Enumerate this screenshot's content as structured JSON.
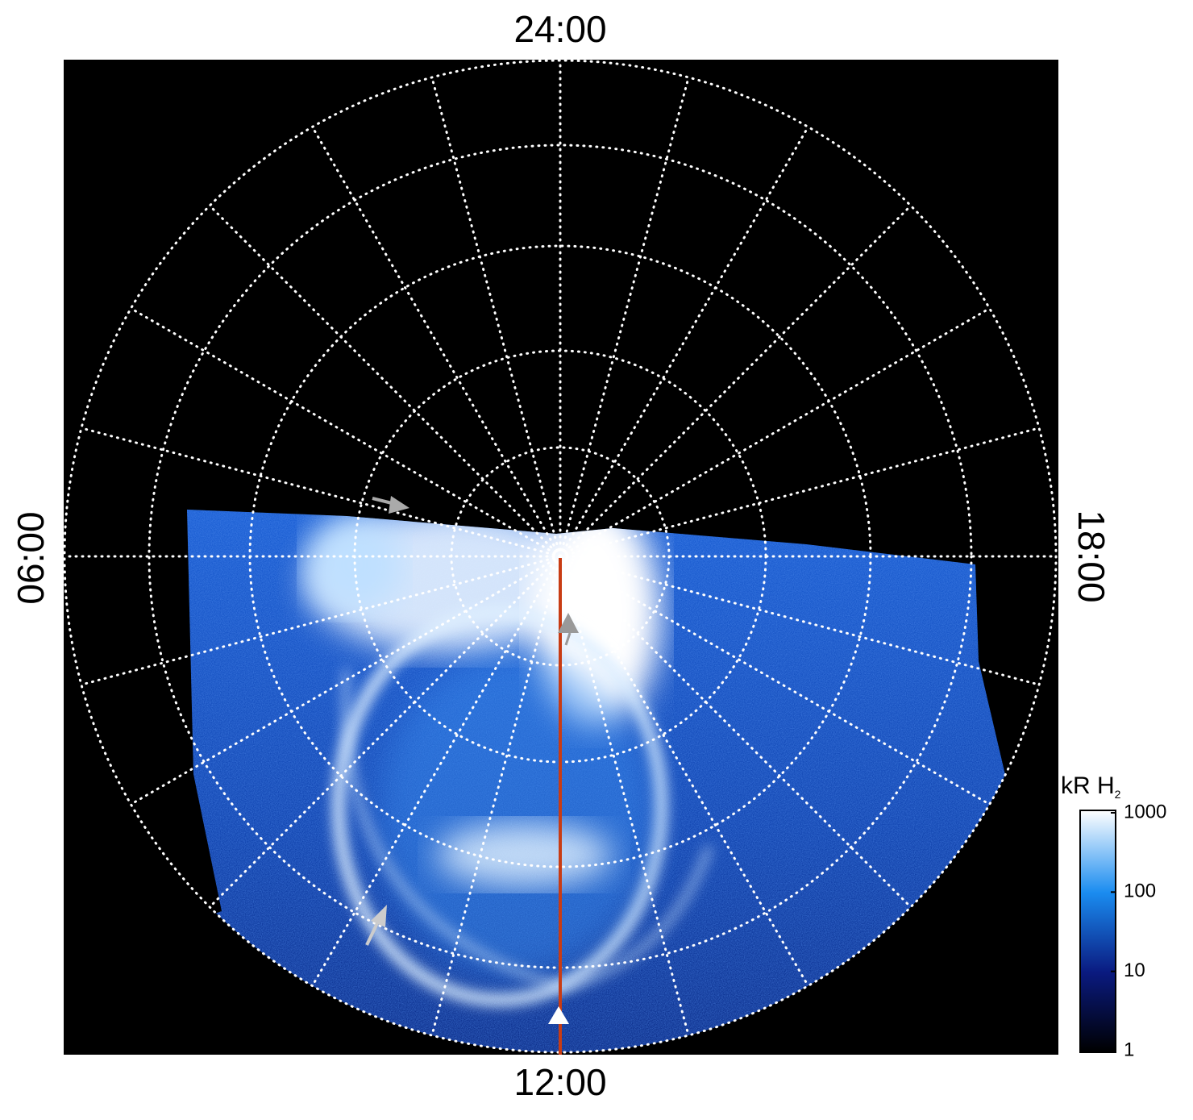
{
  "labels": {
    "top": "24:00",
    "left": "06:00",
    "right": "18:00",
    "bottom": "12:00"
  },
  "colorbar": {
    "label": "kR H",
    "label_sub": "2",
    "scale": "log",
    "lim": [
      1,
      1000
    ],
    "ticks": [
      1,
      10,
      100,
      1000
    ]
  }
}
